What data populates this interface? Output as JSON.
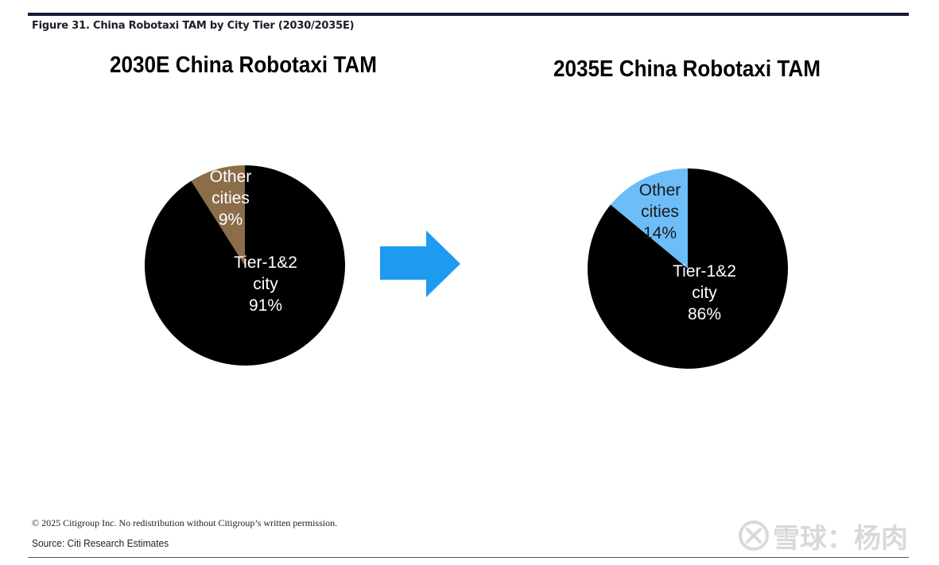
{
  "figure_title": "Figure 31. China Robotaxi TAM by City Tier (2030/2035E)",
  "copyright": "© 2025 Citigroup Inc. No redistribution without Citigroup’s written permission.",
  "source": "Source: Citi Research Estimates",
  "watermark_text": "雪球：杨肉",
  "chart_data": [
    {
      "type": "pie",
      "title": "2030E China Robotaxi TAM",
      "slices": [
        {
          "label_lines": [
            "Other",
            "cities",
            "9%"
          ],
          "value": 9,
          "color": "#8b6d4a",
          "text_color": "#ffffff"
        },
        {
          "label_lines": [
            "Tier-1&2",
            "city",
            "91%"
          ],
          "value": 91,
          "color": "#000000",
          "text_color": "#ffffff"
        }
      ]
    },
    {
      "type": "pie",
      "title": "2035E China Robotaxi TAM",
      "slices": [
        {
          "label_lines": [
            "Other",
            "cities",
            "14%"
          ],
          "value": 14,
          "color": "#6cbdf8",
          "text_color": "#1a1a1a"
        },
        {
          "label_lines": [
            "Tier-1&2",
            "city",
            "86%"
          ],
          "value": 86,
          "color": "#000000",
          "text_color": "#ffffff"
        }
      ]
    }
  ],
  "arrow_color": "#1e9bf0"
}
